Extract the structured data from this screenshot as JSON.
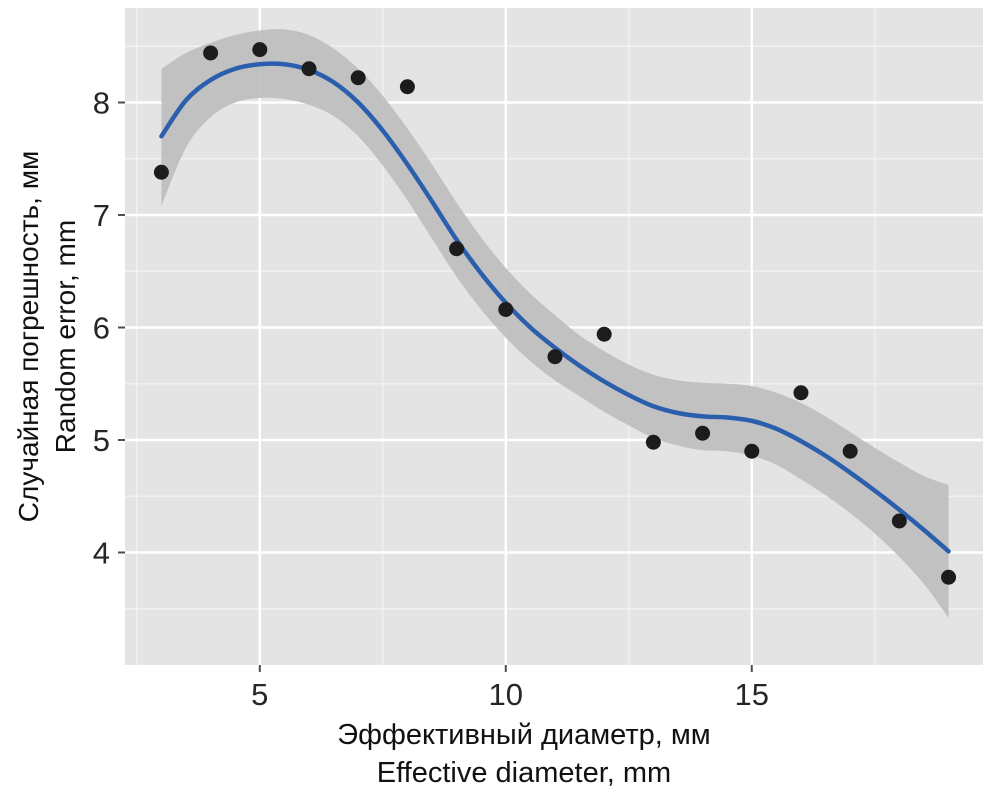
{
  "chart_data": {
    "type": "scatter",
    "subtype": "scatter-with-loess-smooth-and-confidence-band",
    "title": "",
    "x_axis": {
      "label_ru": "Эффективный диаметр, мм",
      "label_en": "Effective  diameter,  mm",
      "min": 2.26,
      "max": 19.7,
      "major_ticks": [
        5,
        10,
        15
      ],
      "minor_ticks": [
        2.5,
        7.5,
        12.5,
        17.5
      ],
      "tick_labels": [
        "5",
        "10",
        "15"
      ]
    },
    "y_axis": {
      "label_ru": "Случайная погрешность, мм",
      "label_en": "Random error, mm",
      "min": 3.0,
      "max": 8.84,
      "major_ticks": [
        4,
        5,
        6,
        7,
        8
      ],
      "minor_ticks": [
        3.5,
        4.5,
        5.5,
        6.5,
        7.5,
        8.5
      ],
      "tick_labels": [
        "4",
        "5",
        "6",
        "7",
        "8"
      ]
    },
    "points": {
      "x": [
        3,
        4,
        5,
        6,
        7,
        8,
        9,
        10,
        11,
        12,
        13,
        14,
        15,
        16,
        17,
        18,
        19
      ],
      "y": [
        7.38,
        8.44,
        8.47,
        8.3,
        8.22,
        8.14,
        6.7,
        6.16,
        5.74,
        5.94,
        4.98,
        5.06,
        4.9,
        5.42,
        4.9,
        4.28,
        3.78
      ]
    },
    "smooth": {
      "x": [
        3,
        3.5,
        4,
        4.5,
        5,
        5.5,
        6,
        6.5,
        7,
        7.5,
        8,
        8.5,
        9,
        9.5,
        10,
        10.5,
        11,
        11.5,
        12,
        12.5,
        13,
        13.5,
        14,
        14.5,
        15,
        15.5,
        16,
        16.5,
        17,
        17.5,
        18,
        18.5,
        19
      ],
      "y": [
        7.7,
        8.02,
        8.2,
        8.3,
        8.34,
        8.34,
        8.29,
        8.18,
        8.0,
        7.75,
        7.45,
        7.12,
        6.78,
        6.48,
        6.22,
        6.0,
        5.82,
        5.66,
        5.52,
        5.4,
        5.3,
        5.24,
        5.21,
        5.2,
        5.17,
        5.1,
        4.99,
        4.86,
        4.71,
        4.55,
        4.38,
        4.2,
        4.01
      ],
      "upper": [
        8.3,
        8.44,
        8.53,
        8.6,
        8.64,
        8.65,
        8.6,
        8.48,
        8.3,
        8.06,
        7.77,
        7.45,
        7.11,
        6.8,
        6.53,
        6.3,
        6.11,
        5.93,
        5.79,
        5.67,
        5.58,
        5.53,
        5.51,
        5.5,
        5.48,
        5.42,
        5.33,
        5.21,
        5.07,
        4.93,
        4.8,
        4.68,
        4.6
      ],
      "lower": [
        7.08,
        7.6,
        7.87,
        8.0,
        8.04,
        8.03,
        7.98,
        7.88,
        7.7,
        7.44,
        7.13,
        6.79,
        6.45,
        6.16,
        5.91,
        5.7,
        5.53,
        5.39,
        5.25,
        5.13,
        5.02,
        4.95,
        4.91,
        4.9,
        4.86,
        4.78,
        4.65,
        4.51,
        4.35,
        4.17,
        3.96,
        3.72,
        3.42
      ]
    },
    "legend": "none",
    "grid": "on",
    "colors": {
      "panel": "#e4e4e4",
      "grid_major": "#ffffff",
      "grid_minor": "#f3f3f3",
      "ribbon": "#bcbcbc",
      "ribbon_opacity": 0.9,
      "line": "#2b5fad",
      "point": "#1c1c1c",
      "tick_mark": "#4d4d4d",
      "tick_text": "#262626",
      "axis_title": "#111111"
    }
  }
}
